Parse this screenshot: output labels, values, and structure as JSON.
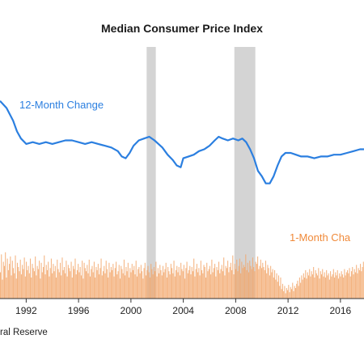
{
  "chart_data": {
    "type": "line",
    "title": "Median Consumer Price Index",
    "source": "ral Reserve",
    "x_ticks": [
      "1992",
      "1996",
      "2000",
      "2004",
      "2008",
      "2012",
      "2016"
    ],
    "xlim": [
      1990,
      2017.8
    ],
    "recessions": [
      [
        2001.2,
        2001.9
      ],
      [
        2007.9,
        2009.5
      ]
    ],
    "series": [
      {
        "name": "12-Month Change",
        "color": "#2b7fe0",
        "x": [
          1990,
          1990.5,
          1991,
          1991.3,
          1991.6,
          1992,
          1992.5,
          1993,
          1993.5,
          1994,
          1994.5,
          1995,
          1995.5,
          1996,
          1996.5,
          1997,
          1997.5,
          1998,
          1998.5,
          1999,
          1999.3,
          1999.6,
          1999.9,
          2000.2,
          2000.6,
          2001,
          2001.4,
          2001.8,
          2002.1,
          2002.4,
          2002.8,
          2003.2,
          2003.5,
          2003.8,
          2004,
          2004.4,
          2004.8,
          2005.2,
          2005.6,
          2006,
          2006.4,
          2006.7,
          2007,
          2007.4,
          2007.8,
          2008.2,
          2008.5,
          2008.8,
          2009.1,
          2009.4,
          2009.7,
          2010,
          2010.3,
          2010.6,
          2010.9,
          2011.2,
          2011.5,
          2011.8,
          2012.2,
          2012.6,
          2013,
          2013.5,
          2014,
          2014.5,
          2015,
          2015.5,
          2016,
          2016.5,
          2017,
          2017.5,
          2017.8
        ],
        "values": [
          5.7,
          5.3,
          4.6,
          4.0,
          3.6,
          3.3,
          3.4,
          3.3,
          3.4,
          3.3,
          3.4,
          3.5,
          3.5,
          3.4,
          3.3,
          3.4,
          3.3,
          3.2,
          3.1,
          2.9,
          2.6,
          2.5,
          2.8,
          3.2,
          3.5,
          3.6,
          3.7,
          3.5,
          3.3,
          3.1,
          2.7,
          2.4,
          2.1,
          2.0,
          2.5,
          2.6,
          2.7,
          2.9,
          3.0,
          3.2,
          3.5,
          3.7,
          3.6,
          3.5,
          3.6,
          3.5,
          3.6,
          3.4,
          3.0,
          2.5,
          1.8,
          1.5,
          1.1,
          1.1,
          1.5,
          2.1,
          2.6,
          2.8,
          2.8,
          2.7,
          2.6,
          2.6,
          2.5,
          2.6,
          2.6,
          2.7,
          2.7,
          2.8,
          2.9,
          3.0,
          3.0
        ]
      },
      {
        "name": "1-Month Cha",
        "color": "#f2a66a",
        "x_range": [
          1990,
          2017.8
        ],
        "monthly_values": [
          0.25,
          0.42,
          0.18,
          0.35,
          0.31,
          0.44,
          0.2,
          0.38,
          0.27,
          0.33,
          0.4,
          0.22,
          0.36,
          0.29,
          0.24,
          0.41,
          0.19,
          0.34,
          0.3,
          0.26,
          0.37,
          0.23,
          0.32,
          0.28,
          0.39,
          0.21,
          0.35,
          0.27,
          0.31,
          0.24,
          0.38,
          0.2,
          0.33,
          0.29,
          0.26,
          0.4,
          0.22,
          0.31,
          0.28,
          0.36,
          0.19,
          0.34,
          0.25,
          0.3,
          0.41,
          0.23,
          0.32,
          0.27,
          0.35,
          0.21,
          0.29,
          0.38,
          0.24,
          0.33,
          0.26,
          0.31,
          0.2,
          0.37,
          0.28,
          0.25,
          0.34,
          0.22,
          0.39,
          0.27,
          0.3,
          0.24,
          0.36,
          0.21,
          0.32,
          0.29,
          0.26,
          0.35,
          0.2,
          0.31,
          0.28,
          0.38,
          0.23,
          0.27,
          0.33,
          0.25,
          0.3,
          0.22,
          0.36,
          0.19,
          0.34,
          0.29,
          0.26,
          0.32,
          0.24,
          0.37,
          0.21,
          0.28,
          0.31,
          0.25,
          0.35,
          0.2,
          0.3,
          0.27,
          0.33,
          0.23,
          0.29,
          0.38,
          0.22,
          0.26,
          0.31,
          0.24,
          0.36,
          0.28,
          0.2,
          0.34,
          0.25,
          0.3,
          0.27,
          0.33,
          0.21,
          0.29,
          0.35,
          0.23,
          0.26,
          0.32,
          0.19,
          0.31,
          0.28,
          0.24,
          0.37,
          0.22,
          0.3,
          0.26,
          0.34,
          0.2,
          0.29,
          0.25,
          0.33,
          0.27,
          0.31,
          0.23,
          0.36,
          0.21,
          0.28,
          0.3,
          0.24,
          0.32,
          0.26,
          0.19,
          0.29,
          0.34,
          0.22,
          0.27,
          0.31,
          0.25,
          0.2,
          0.33,
          0.28,
          0.23,
          0.3,
          0.26,
          0.35,
          0.21,
          0.29,
          0.24,
          0.32,
          0.27,
          0.22,
          0.31,
          0.25,
          0.28,
          0.34,
          0.2,
          0.3,
          0.26,
          0.23,
          0.33,
          0.29,
          0.24,
          0.36,
          0.21,
          0.27,
          0.31,
          0.25,
          0.3,
          0.22,
          0.34,
          0.28,
          0.26,
          0.32,
          0.19,
          0.29,
          0.35,
          0.24,
          0.27,
          0.31,
          0.23,
          0.3,
          0.26,
          0.38,
          0.21,
          0.28,
          0.33,
          0.25,
          0.29,
          0.22,
          0.36,
          0.27,
          0.24,
          0.32,
          0.3,
          0.2,
          0.34,
          0.26,
          0.28,
          0.31,
          0.23,
          0.37,
          0.25,
          0.29,
          0.33,
          0.21,
          0.3,
          0.27,
          0.35,
          0.24,
          0.28,
          0.32,
          0.26,
          0.39,
          0.22,
          0.31,
          0.29,
          0.36,
          0.25,
          0.3,
          0.34,
          0.27,
          0.41,
          0.23,
          0.33,
          0.28,
          0.37,
          0.26,
          0.31,
          0.38,
          0.24,
          0.35,
          0.29,
          0.32,
          0.3,
          0.42,
          0.27,
          0.34,
          0.25,
          0.36,
          0.31,
          0.28,
          0.39,
          0.3,
          0.26,
          0.35,
          0.33,
          0.4,
          0.28,
          0.31,
          0.37,
          0.29,
          0.34,
          0.3,
          0.27,
          0.36,
          0.24,
          0.32,
          0.29,
          0.22,
          0.31,
          0.25,
          0.28,
          0.2,
          0.27,
          0.18,
          0.24,
          0.16,
          0.22,
          0.12,
          0.2,
          0.09,
          0.14,
          0.07,
          0.12,
          0.05,
          0.1,
          0.08,
          0.13,
          0.06,
          0.11,
          0.09,
          0.15,
          0.07,
          0.12,
          0.1,
          0.14,
          0.17,
          0.12,
          0.2,
          0.15,
          0.22,
          0.18,
          0.24,
          0.2,
          0.27,
          0.19,
          0.25,
          0.22,
          0.28,
          0.21,
          0.26,
          0.23,
          0.3,
          0.2,
          0.27,
          0.24,
          0.22,
          0.29,
          0.19,
          0.26,
          0.23,
          0.28,
          0.21,
          0.25,
          0.2,
          0.27,
          0.22,
          0.24,
          0.18,
          0.26,
          0.21,
          0.23,
          0.28,
          0.2,
          0.25,
          0.22,
          0.27,
          0.19,
          0.24,
          0.21,
          0.26,
          0.23,
          0.2,
          0.28,
          0.22,
          0.25,
          0.27,
          0.24,
          0.29,
          0.21,
          0.26,
          0.3,
          0.23,
          0.28,
          0.25,
          0.32,
          0.24,
          0.29,
          0.27,
          0.33,
          0.26,
          0.3,
          0.35
        ]
      }
    ]
  }
}
